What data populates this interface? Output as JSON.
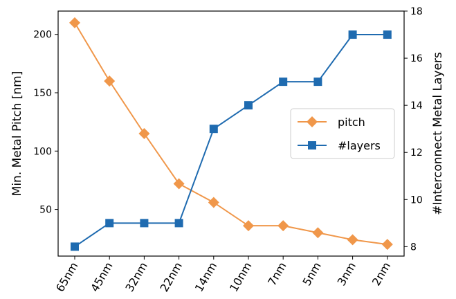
{
  "chart_data": {
    "type": "line",
    "categories": [
      "65nm",
      "45nm",
      "32nm",
      "22nm",
      "14nm",
      "10nm",
      "7nm",
      "5nm",
      "3nm",
      "2nm"
    ],
    "series": [
      {
        "name": "pitch",
        "axis": "left",
        "marker": "diamond",
        "color": "#F0974A",
        "values": [
          210,
          160,
          115,
          72,
          56,
          36,
          36,
          30,
          24,
          20
        ]
      },
      {
        "name": "#layers",
        "axis": "right",
        "marker": "square",
        "color": "#1F6BB0",
        "values": [
          8,
          9,
          9,
          9,
          13,
          14,
          15,
          15,
          17,
          17
        ]
      }
    ],
    "ylabel": "Min. Metal Pitch [nm]",
    "ylabel_right": "#Interconnect Metal Layers",
    "ylim": [
      10,
      220
    ],
    "ylim_right": [
      7.6,
      18
    ],
    "yticks": [
      50,
      100,
      150,
      200
    ],
    "yticks_right": [
      8,
      10,
      12,
      14,
      16,
      18
    ],
    "grid": false,
    "legend": "center-right",
    "xtick_rotation": "60deg"
  }
}
